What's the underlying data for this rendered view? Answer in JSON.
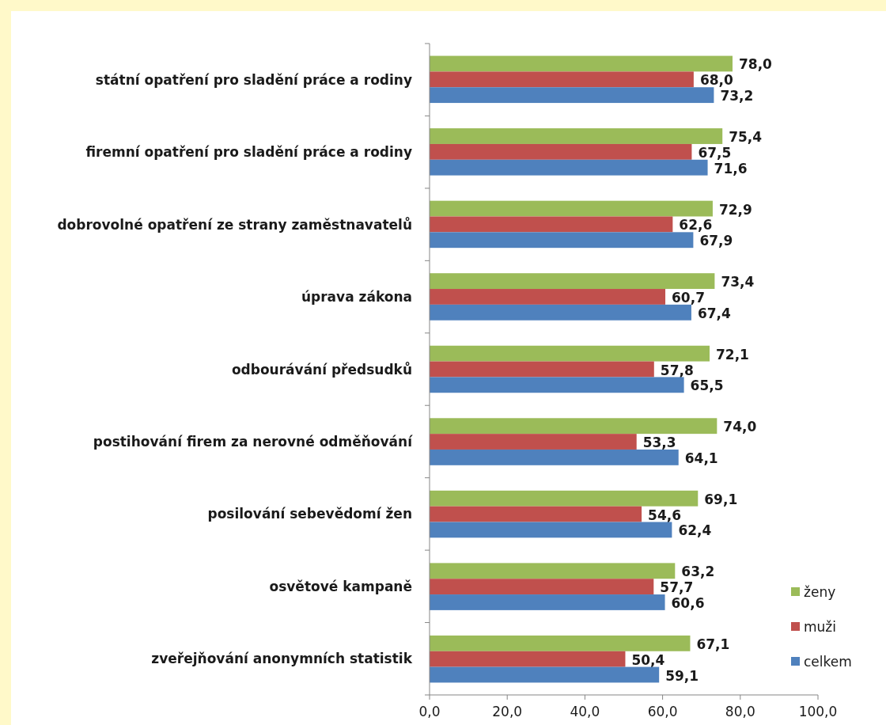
{
  "chart_data": {
    "type": "bar",
    "orientation": "horizontal",
    "categories": [
      "státní opatření pro sladění práce a rodiny",
      "firemní opatření pro sladění práce a rodiny",
      "dobrovolné opatření ze strany zaměstnavatelů",
      "úprava zákona",
      "odbourávání předsudků",
      "postihování firem za nerovné odměňování",
      "posilování sebevědomí žen",
      "osvětové kampaně",
      "zveřejňování anonymních statistik"
    ],
    "series": [
      {
        "name": "ženy",
        "color": "#9bbb59",
        "values": [
          78.0,
          75.4,
          72.9,
          73.4,
          72.1,
          74.0,
          69.1,
          63.2,
          67.1
        ],
        "value_labels": [
          "78,0",
          "75,4",
          "72,9",
          "73,4",
          "72,1",
          "74,0",
          "69,1",
          "63,2",
          "67,1"
        ]
      },
      {
        "name": "muži",
        "color": "#c0504d",
        "values": [
          68.0,
          67.5,
          62.6,
          60.7,
          57.8,
          53.3,
          54.6,
          57.7,
          50.4
        ],
        "value_labels": [
          "68,0",
          "67,5",
          "62,6",
          "60,7",
          "57,8",
          "53,3",
          "54,6",
          "57,7",
          "50,4"
        ]
      },
      {
        "name": "celkem",
        "color": "#4f81bd",
        "values": [
          73.2,
          71.6,
          67.9,
          67.4,
          65.5,
          64.1,
          62.4,
          60.6,
          59.1
        ],
        "value_labels": [
          "73,2",
          "71,6",
          "67,9",
          "67,4",
          "65,5",
          "64,1",
          "62,4",
          "60,6",
          "59,1"
        ]
      }
    ],
    "xlim": [
      0,
      100
    ],
    "xticks": [
      {
        "value": 0,
        "label": "0,0"
      },
      {
        "value": 20,
        "label": "20,0"
      },
      {
        "value": 40,
        "label": "40,0"
      },
      {
        "value": 60,
        "label": "60,0"
      },
      {
        "value": 80,
        "label": "80,0"
      },
      {
        "value": 100,
        "label": "100,0"
      }
    ],
    "legend": "bottom right",
    "grid": false
  }
}
